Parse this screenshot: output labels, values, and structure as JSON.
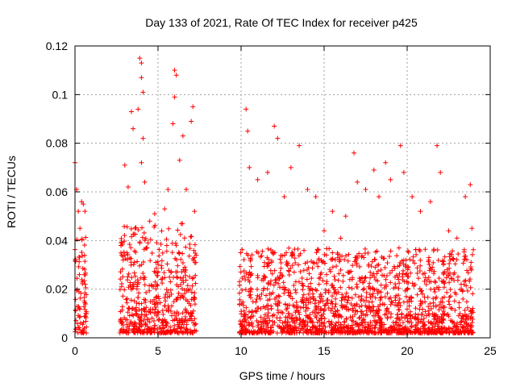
{
  "chart_data": {
    "type": "scatter",
    "title": "Day 133 of 2021, Rate Of TEC Index for receiver p425",
    "xlabel": "GPS time / hours",
    "ylabel": "ROTI / TECUs",
    "xlim": [
      0,
      25
    ],
    "ylim": [
      0,
      0.12
    ],
    "x_ticks": [
      0,
      5,
      10,
      15,
      20,
      25
    ],
    "x_tick_labels": [
      "0",
      "5",
      "10",
      "15",
      "20",
      "25"
    ],
    "y_ticks": [
      0,
      0.02,
      0.04,
      0.06,
      0.08,
      0.1,
      0.12
    ],
    "y_tick_labels": [
      "0",
      "0.02",
      "0.04",
      "0.06",
      "0.08",
      "0.1",
      "0.12"
    ],
    "grid": true,
    "marker": "+",
    "color": "#ff0000",
    "series": [
      {
        "points": [
          [
            0.0,
            0.072
          ],
          [
            0.1,
            0.061
          ],
          [
            0.2,
            0.052
          ],
          [
            0.3,
            0.045
          ],
          [
            0.4,
            0.056
          ],
          [
            0.5,
            0.055
          ],
          [
            0.6,
            0.052
          ],
          [
            3.0,
            0.071
          ],
          [
            3.2,
            0.062
          ],
          [
            3.4,
            0.093
          ],
          [
            3.5,
            0.086
          ],
          [
            3.8,
            0.094
          ],
          [
            3.9,
            0.115
          ],
          [
            4.0,
            0.113
          ],
          [
            4.0,
            0.107
          ],
          [
            4.1,
            0.101
          ],
          [
            4.1,
            0.082
          ],
          [
            4.0,
            0.072
          ],
          [
            4.2,
            0.064
          ],
          [
            4.5,
            0.048
          ],
          [
            4.8,
            0.051
          ],
          [
            5.4,
            0.053
          ],
          [
            5.6,
            0.061
          ],
          [
            5.9,
            0.088
          ],
          [
            6.0,
            0.11
          ],
          [
            6.1,
            0.108
          ],
          [
            6.0,
            0.099
          ],
          [
            6.3,
            0.073
          ],
          [
            6.5,
            0.083
          ],
          [
            6.7,
            0.061
          ],
          [
            7.0,
            0.089
          ],
          [
            7.1,
            0.095
          ],
          [
            7.2,
            0.052
          ],
          [
            10.3,
            0.094
          ],
          [
            10.4,
            0.085
          ],
          [
            10.5,
            0.07
          ],
          [
            11.0,
            0.065
          ],
          [
            11.6,
            0.068
          ],
          [
            12.0,
            0.087
          ],
          [
            12.2,
            0.082
          ],
          [
            12.6,
            0.058
          ],
          [
            13.0,
            0.07
          ],
          [
            13.5,
            0.079
          ],
          [
            14.0,
            0.061
          ],
          [
            14.5,
            0.058
          ],
          [
            15.0,
            0.044
          ],
          [
            15.5,
            0.052
          ],
          [
            16.0,
            0.041
          ],
          [
            16.3,
            0.05
          ],
          [
            16.8,
            0.076
          ],
          [
            17.0,
            0.064
          ],
          [
            17.5,
            0.061
          ],
          [
            18.0,
            0.069
          ],
          [
            18.3,
            0.058
          ],
          [
            18.7,
            0.072
          ],
          [
            19.0,
            0.065
          ],
          [
            19.6,
            0.079
          ],
          [
            19.8,
            0.068
          ],
          [
            20.3,
            0.058
          ],
          [
            20.8,
            0.052
          ],
          [
            21.4,
            0.056
          ],
          [
            21.8,
            0.079
          ],
          [
            22.0,
            0.068
          ],
          [
            22.5,
            0.044
          ],
          [
            23.0,
            0.041
          ],
          [
            23.5,
            0.058
          ],
          [
            23.8,
            0.063
          ],
          [
            23.9,
            0.045
          ]
        ]
      }
    ]
  }
}
